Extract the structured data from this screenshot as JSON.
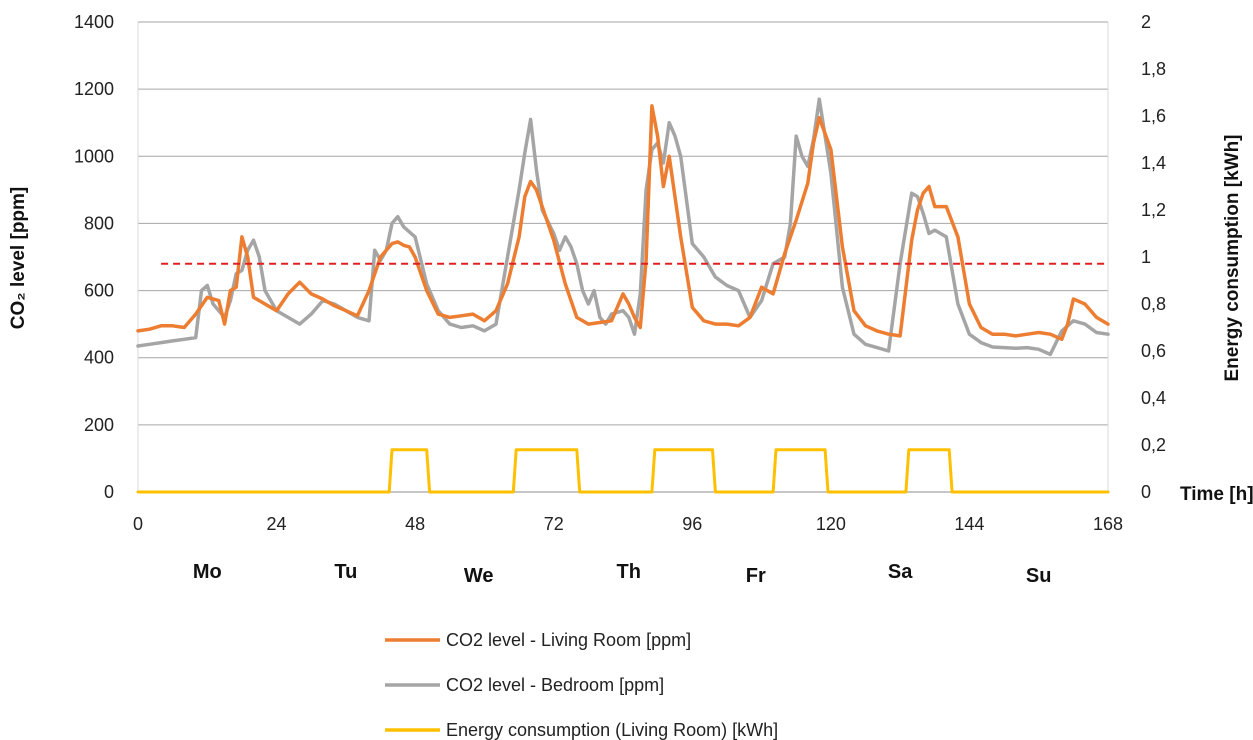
{
  "chart_data": {
    "type": "line",
    "x_unit_label": "Time [h]",
    "ylabel_left": "CO₂ level [ppm]",
    "ylabel_right": "Energy consumption [kWh]",
    "xlim": [
      0,
      168
    ],
    "ylim_left": [
      0,
      1400
    ],
    "ylim_right": [
      0,
      2
    ],
    "x_ticks": [
      "0",
      "24",
      "48",
      "72",
      "96",
      "120",
      "144",
      "168"
    ],
    "y_left_ticks": [
      "0",
      "200",
      "400",
      "600",
      "800",
      "1000",
      "1200",
      "1400"
    ],
    "y_right_ticks": [
      "0",
      "0,2",
      "0,4",
      "0,6",
      "0,8",
      "1",
      "1,2",
      "1,4",
      "1,6",
      "1,8",
      "2"
    ],
    "grid": true,
    "legend_position": "bottom",
    "day_labels": [
      {
        "text": "Mo",
        "x": 12
      },
      {
        "text": "Tu",
        "x": 36
      },
      {
        "text": "We",
        "x": 59
      },
      {
        "text": "Th",
        "x": 85
      },
      {
        "text": "Fr",
        "x": 107
      },
      {
        "text": "Sa",
        "x": 132
      },
      {
        "text": "Su",
        "x": 156
      }
    ],
    "threshold": {
      "value": 680,
      "x_range": [
        4,
        168
      ],
      "color": "#e02020"
    },
    "series": [
      {
        "name": "CO2 level - Living Room [ppm]",
        "axis": "left",
        "color": "#ed7d31",
        "x": [
          0,
          2,
          4,
          6,
          8,
          10,
          12,
          14,
          15,
          16,
          17,
          18,
          19,
          20,
          21,
          22,
          24,
          26,
          28,
          30,
          32,
          34,
          36,
          38,
          40,
          42,
          44,
          45,
          46,
          47,
          48,
          50,
          52,
          54,
          56,
          58,
          60,
          62,
          64,
          66,
          67,
          68,
          69,
          70,
          72,
          74,
          76,
          78,
          80,
          82,
          84,
          85,
          86,
          87,
          88,
          89,
          90,
          91,
          92,
          94,
          96,
          98,
          100,
          102,
          104,
          106,
          108,
          110,
          112,
          114,
          116,
          117,
          118,
          120,
          122,
          124,
          126,
          128,
          130,
          132,
          134,
          135,
          136,
          137,
          138,
          140,
          142,
          144,
          146,
          148,
          150,
          152,
          154,
          156,
          158,
          160,
          161,
          162,
          164,
          166,
          168
        ],
        "values": [
          480,
          485,
          495,
          495,
          490,
          530,
          580,
          570,
          500,
          600,
          610,
          760,
          700,
          580,
          570,
          560,
          540,
          590,
          625,
          590,
          575,
          555,
          540,
          525,
          600,
          700,
          740,
          745,
          735,
          730,
          700,
          600,
          530,
          520,
          525,
          530,
          510,
          540,
          620,
          760,
          880,
          925,
          900,
          850,
          750,
          620,
          520,
          500,
          505,
          510,
          590,
          560,
          520,
          490,
          690,
          1150,
          1060,
          910,
          1000,
          760,
          550,
          510,
          500,
          500,
          495,
          520,
          610,
          590,
          710,
          810,
          920,
          1040,
          1115,
          1020,
          730,
          540,
          495,
          480,
          470,
          465,
          750,
          840,
          890,
          910,
          850,
          850,
          760,
          560,
          490,
          470,
          470,
          465,
          470,
          475,
          470,
          455,
          500,
          575,
          560,
          520,
          500
        ]
      },
      {
        "name": "CO2 level - Bedroom [ppm]",
        "axis": "left",
        "color": "#a5a5a5",
        "x": [
          0,
          2,
          4,
          6,
          8,
          10,
          11,
          12,
          13,
          14,
          15,
          16,
          17,
          18,
          19,
          20,
          21,
          22,
          24,
          26,
          28,
          30,
          32,
          34,
          36,
          38,
          40,
          41,
          42,
          43,
          44,
          45,
          46,
          48,
          50,
          52,
          54,
          56,
          58,
          60,
          62,
          64,
          66,
          67,
          68,
          69,
          70,
          72,
          73,
          74,
          75,
          76,
          77,
          78,
          79,
          80,
          81,
          82,
          84,
          85,
          86,
          87,
          88,
          89,
          90,
          91,
          92,
          93,
          94,
          96,
          98,
          100,
          102,
          104,
          106,
          108,
          110,
          112,
          113,
          114,
          115,
          116,
          117,
          118,
          120,
          122,
          124,
          126,
          128,
          130,
          132,
          134,
          135,
          136,
          137,
          138,
          140,
          142,
          144,
          146,
          148,
          150,
          152,
          154,
          156,
          158,
          160,
          162,
          164,
          166,
          168
        ],
        "values": [
          435,
          440,
          445,
          450,
          455,
          460,
          600,
          615,
          560,
          540,
          520,
          570,
          650,
          660,
          720,
          750,
          700,
          600,
          540,
          520,
          500,
          530,
          570,
          560,
          540,
          520,
          510,
          720,
          690,
          720,
          800,
          820,
          790,
          760,
          620,
          540,
          500,
          490,
          495,
          480,
          500,
          700,
          900,
          1010,
          1110,
          960,
          840,
          770,
          720,
          760,
          730,
          680,
          600,
          560,
          600,
          520,
          500,
          530,
          540,
          520,
          470,
          590,
          900,
          1020,
          1040,
          980,
          1100,
          1060,
          1000,
          740,
          700,
          640,
          615,
          600,
          520,
          570,
          680,
          700,
          800,
          1060,
          1000,
          970,
          1050,
          1170,
          950,
          610,
          470,
          440,
          430,
          420,
          680,
          890,
          880,
          830,
          770,
          780,
          760,
          560,
          470,
          445,
          432,
          430,
          428,
          430,
          425,
          410,
          480,
          510,
          500,
          475,
          470
        ]
      },
      {
        "name": "Energy consumption  (Living Room) [kWh]",
        "axis": "right",
        "color": "#ffc000",
        "x": [
          0,
          43.5,
          44,
          50,
          50.5,
          65,
          65.5,
          76,
          76.5,
          89,
          89.5,
          99.5,
          100,
          110,
          110.5,
          119,
          119.5,
          133,
          133.5,
          140.5,
          141,
          168
        ],
        "values": [
          0,
          0,
          0.18,
          0.18,
          0,
          0,
          0.18,
          0.18,
          0,
          0,
          0.18,
          0.18,
          0,
          0,
          0.18,
          0.18,
          0,
          0,
          0.18,
          0.18,
          0,
          0
        ]
      }
    ]
  }
}
